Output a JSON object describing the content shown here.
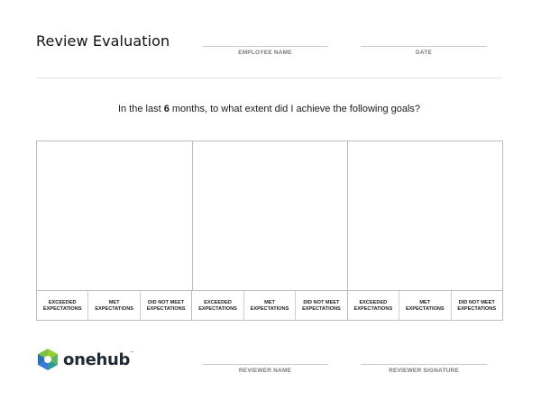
{
  "header": {
    "title": "Review Evaluation",
    "employee_name_label": "EMPLOYEE NAME",
    "date_label": "DATE"
  },
  "question": {
    "prefix": "In the last ",
    "months": "6",
    "suffix": " months, to what extent did I achieve the following goals?"
  },
  "goals": [
    {
      "ratings": [
        "EXCEEDED\nEXPECTATIONS",
        "MET\nEXPECTATIONS",
        "DID NOT MEET\nEXPECTATIONS"
      ]
    },
    {
      "ratings": [
        "EXCEEDED\nEXPECTATIONS",
        "MET\nEXPECTATIONS",
        "DID NOT MEET\nEXPECTATIONS"
      ]
    },
    {
      "ratings": [
        "EXCEEDED\nEXPECTATIONS",
        "MET\nEXPECTATIONS",
        "DID NOT MEET\nEXPECTATIONS"
      ]
    }
  ],
  "footer": {
    "logo_text": "onehub",
    "logo_mark": "™",
    "reviewer_name_label": "REVIEWER NAME",
    "reviewer_signature_label": "REVIEWER SIGNATURE"
  },
  "colors": {
    "logo_green": "#5cb85c",
    "logo_teal": "#2a9d8f",
    "logo_blue": "#3a7bd5",
    "logo_lime": "#9acd32"
  }
}
